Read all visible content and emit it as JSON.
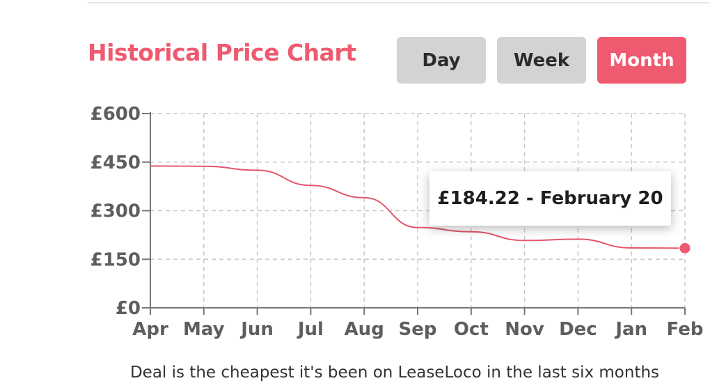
{
  "header": {
    "title": "Historical Price Chart",
    "buttons": {
      "day": "Day",
      "week": "Week",
      "month": "Month"
    },
    "active_button": "Month"
  },
  "tooltip": {
    "text": "£184.22 - February 20"
  },
  "footer": {
    "note": "Deal is the cheapest it's been on LeaseLoco in the last six months"
  },
  "colors": {
    "accent": "#ef5a70",
    "line": "#e4566b",
    "inactive_button": "#d3d3d3",
    "grid": "#c8c8c8"
  },
  "chart_data": {
    "type": "line",
    "title": "Historical Price Chart",
    "xlabel": "",
    "ylabel": "",
    "categories": [
      "Apr",
      "May",
      "Jun",
      "Jul",
      "Aug",
      "Sep",
      "Oct",
      "Nov",
      "Dec",
      "Jan",
      "Feb"
    ],
    "values": [
      438,
      437,
      425,
      378,
      340,
      248,
      235,
      208,
      212,
      185,
      184.22
    ],
    "y_ticks": [
      0,
      150,
      300,
      450,
      600
    ],
    "y_tick_labels": [
      "£0",
      "£150",
      "£300",
      "£450",
      "£600"
    ],
    "ylim": [
      0,
      600
    ],
    "grid": true,
    "highlight_point": {
      "category": "Feb",
      "value": 184.22,
      "label": "£184.22 - February 20"
    }
  }
}
